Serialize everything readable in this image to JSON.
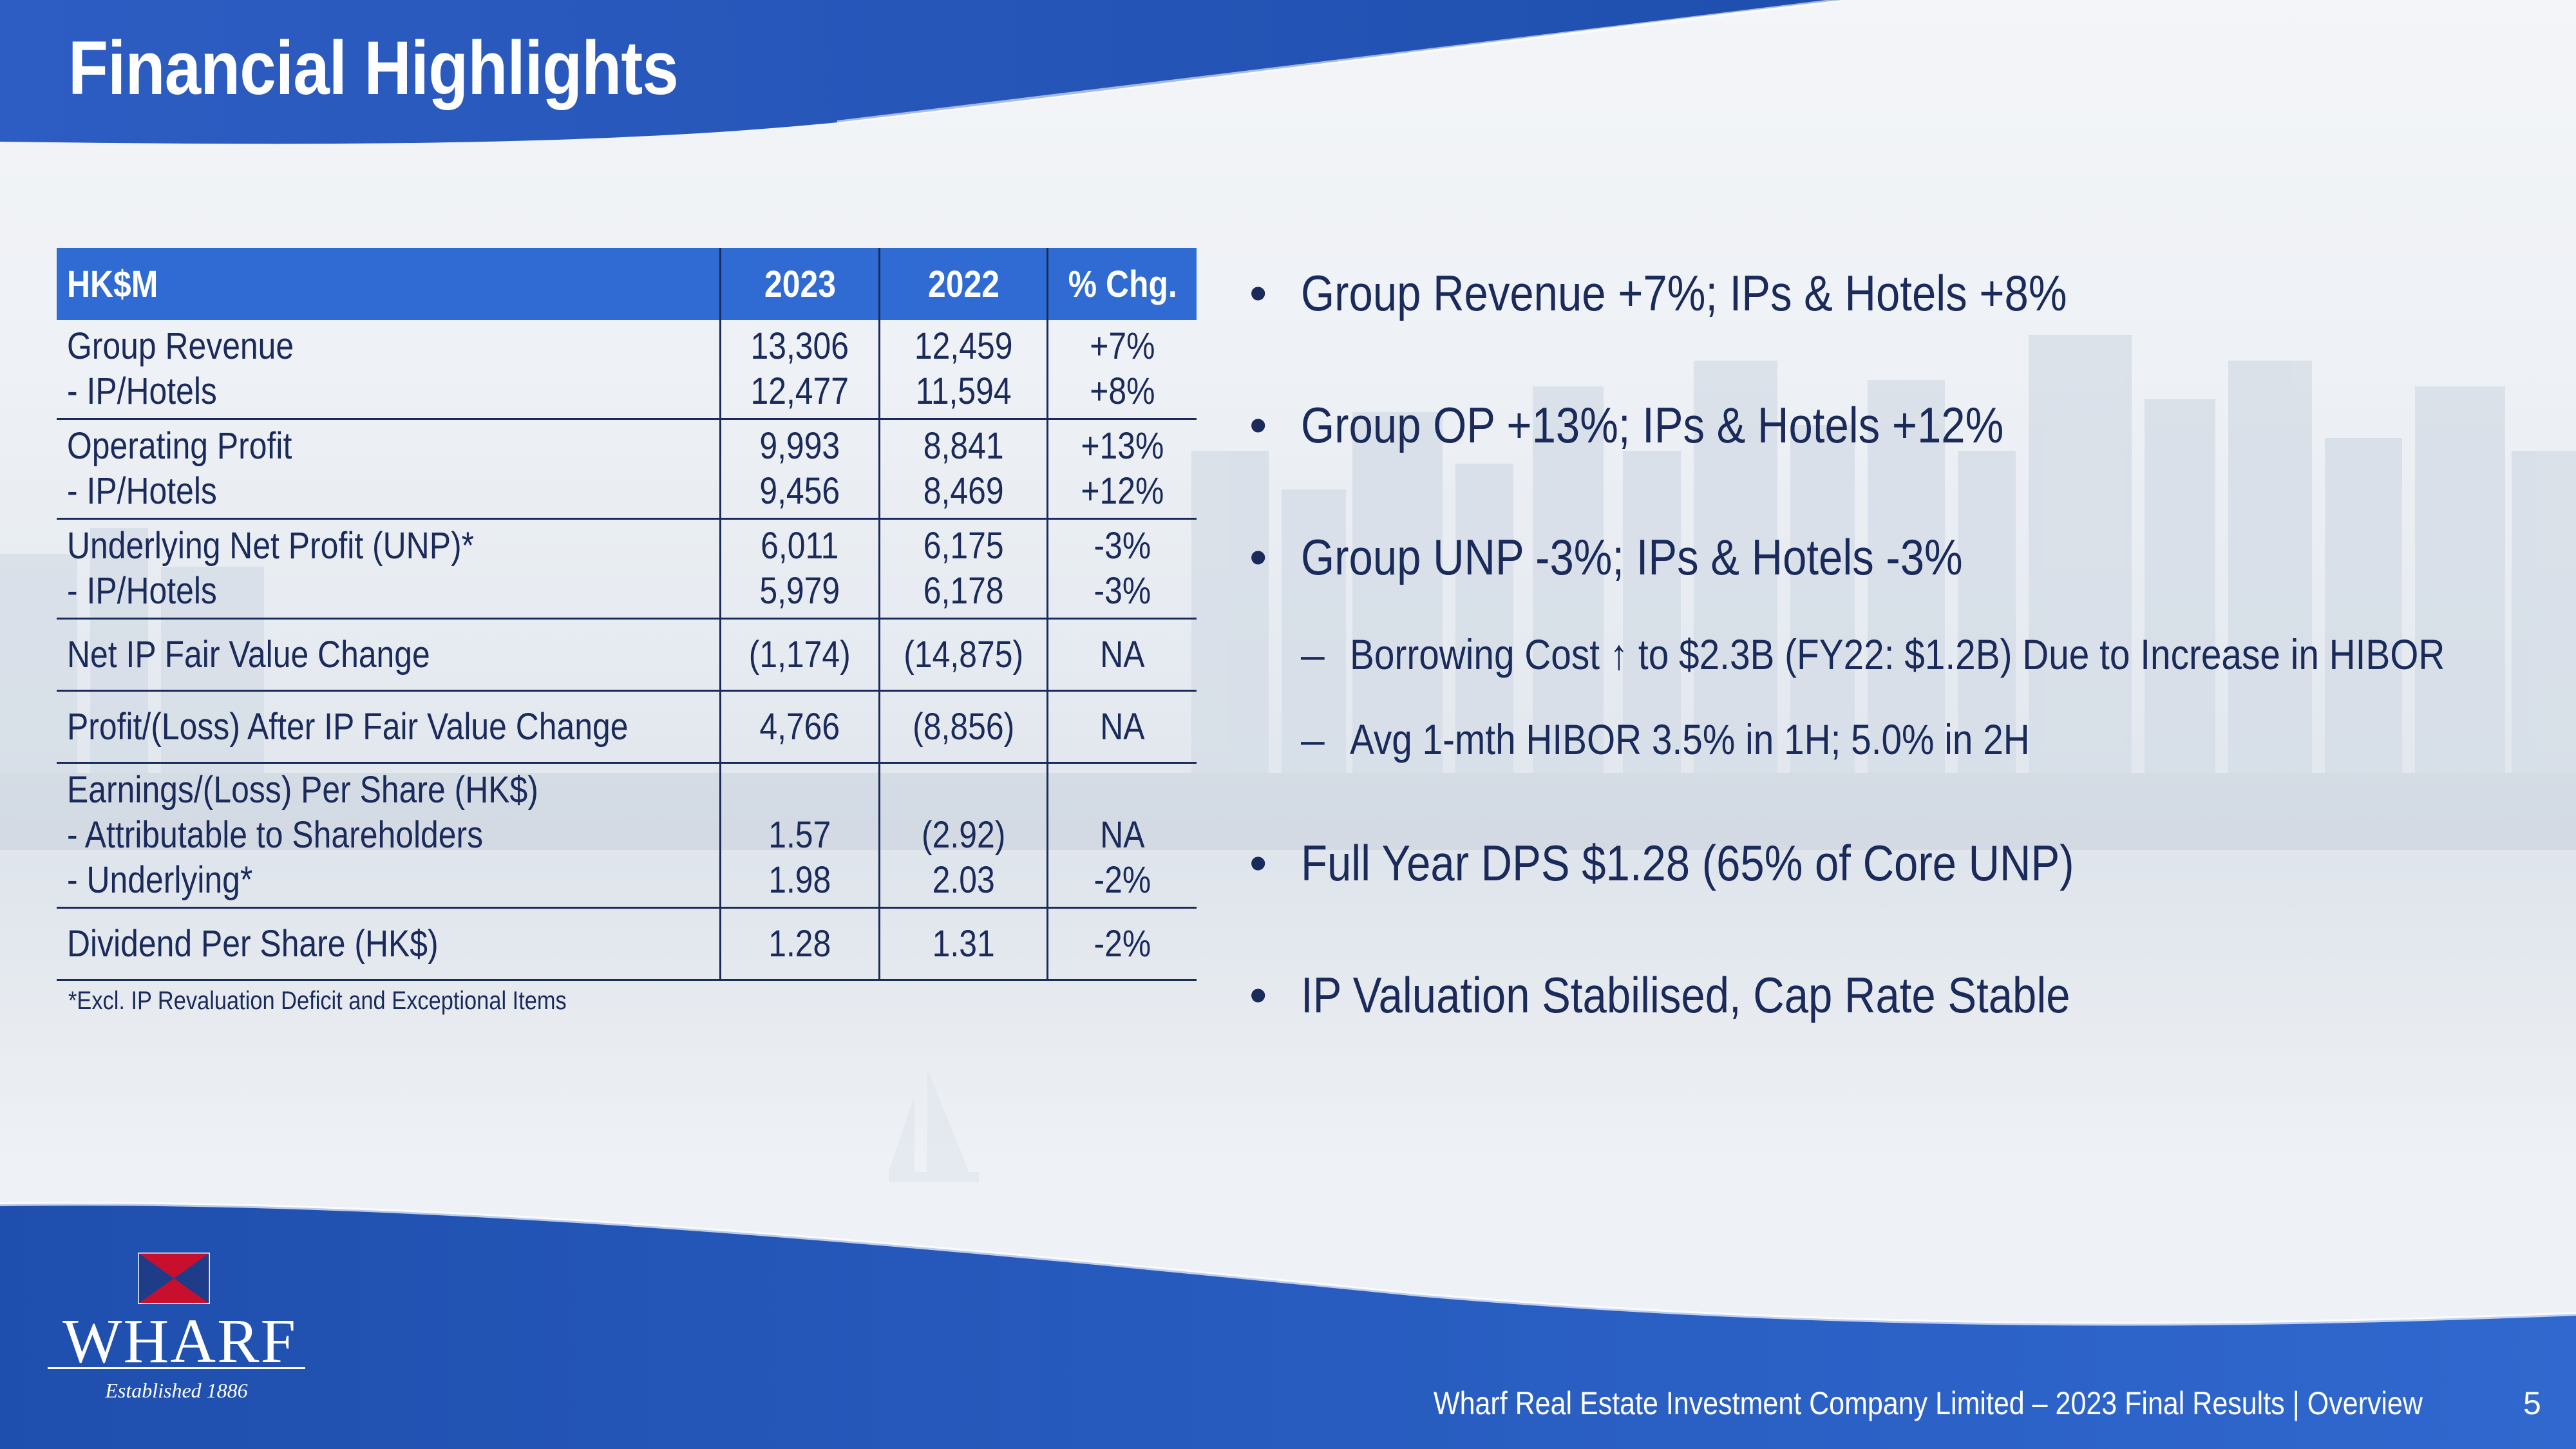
{
  "slide": {
    "title": "Financial Highlights",
    "footer_text": "Wharf Real Estate Investment Company Limited – 2023 Final Results   |   Overview",
    "page_number": "5"
  },
  "logo": {
    "name": "WHARF",
    "established": "Established 1886"
  },
  "table": {
    "headers": [
      "HK$M",
      "2023",
      "2022",
      "% Chg."
    ],
    "rows": [
      {
        "label": [
          "Group Revenue",
          "- IP/Hotels"
        ],
        "y2023": [
          "13,306",
          "12,477"
        ],
        "y2022": [
          "12,459",
          "11,594"
        ],
        "chg": [
          "+7%",
          "+8%"
        ]
      },
      {
        "label": [
          "Operating Profit",
          "- IP/Hotels"
        ],
        "y2023": [
          "9,993",
          "9,456"
        ],
        "y2022": [
          "8,841",
          "8,469"
        ],
        "chg": [
          "+13%",
          "+12%"
        ]
      },
      {
        "label": [
          "Underlying Net Profit (UNP)*",
          "- IP/Hotels"
        ],
        "y2023": [
          "6,011",
          "5,979"
        ],
        "y2022": [
          "6,175",
          "6,178"
        ],
        "chg": [
          "-3%",
          "-3%"
        ]
      },
      {
        "label": [
          "Net IP Fair Value Change"
        ],
        "y2023": [
          "(1,174)"
        ],
        "y2022": [
          "(14,875)"
        ],
        "chg": [
          "NA"
        ]
      },
      {
        "label": [
          "Profit/(Loss) After IP Fair Value Change"
        ],
        "y2023": [
          "4,766"
        ],
        "y2022": [
          "(8,856)"
        ],
        "chg": [
          "NA"
        ]
      },
      {
        "label": [
          "Earnings/(Loss) Per Share (HK$)",
          "- Attributable to Shareholders",
          "- Underlying*"
        ],
        "y2023": [
          "1.57",
          "1.98"
        ],
        "y2022": [
          "(2.92)",
          "2.03"
        ],
        "chg": [
          "NA",
          "-2%"
        ]
      },
      {
        "label": [
          "Dividend Per Share (HK$)"
        ],
        "y2023": [
          "1.28"
        ],
        "y2022": [
          "1.31"
        ],
        "chg": [
          "-2%"
        ]
      }
    ],
    "footnote": "*Excl. IP Revaluation Deficit and Exceptional Items"
  },
  "bullets": [
    {
      "text": "Group Revenue +7%; IPs & Hotels +8%"
    },
    {
      "text": "Group OP +13%; IPs & Hotels +12%"
    },
    {
      "text": "Group UNP -3%; IPs & Hotels -3%"
    },
    {
      "text": "Full Year DPS $1.28 (65% of Core UNP)"
    },
    {
      "text": "IP Valuation Stabilised, Cap Rate Stable"
    }
  ],
  "sub_bullets": [
    {
      "text": "Borrowing Cost ↑ to $2.3B (FY22: $1.2B) Due to Increase in HIBOR"
    },
    {
      "text": "Avg 1-mth HIBOR 3.5% in 1H; 5.0% in 2H"
    }
  ],
  "colors": {
    "brand_blue": "#2f5fc4",
    "header_blue": "#2f6bd2",
    "text_navy": "#1a2a5a",
    "logo_red": "#c8102e"
  }
}
